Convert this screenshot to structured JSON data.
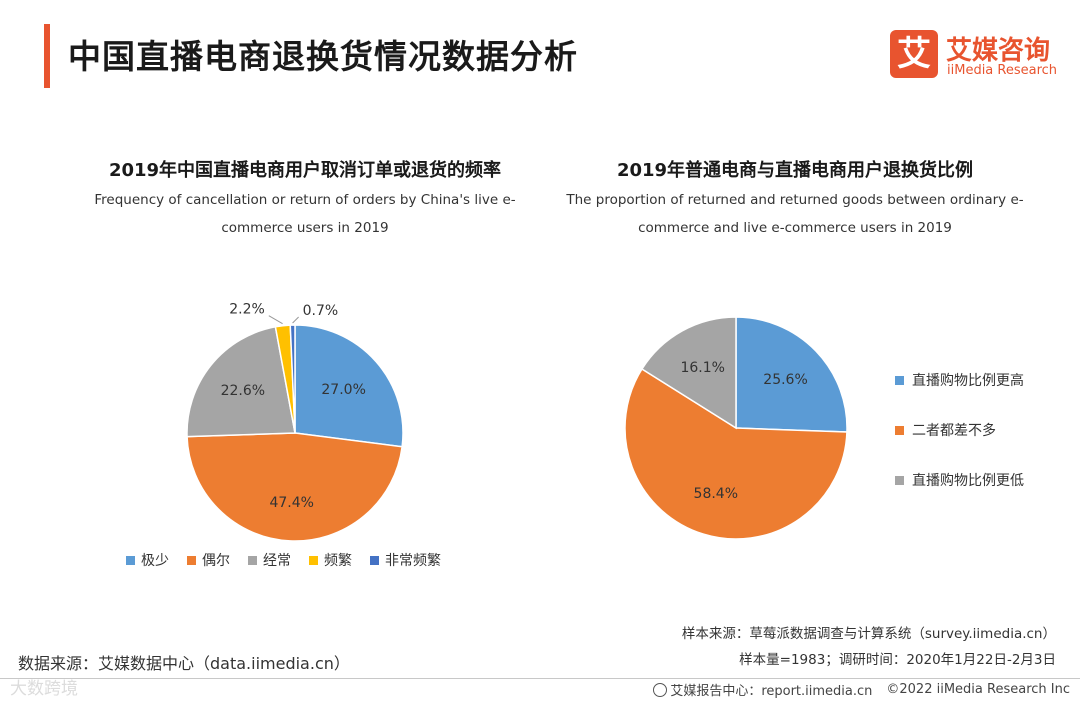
{
  "header": {
    "title": "中国直播电商退换货情况数据分析",
    "logo_mark": "艾",
    "logo_cn": "艾媒咨询",
    "logo_en": "iiMedia Research"
  },
  "chart_data": [
    {
      "type": "pie",
      "title": "2019年中国直播电商用户取消订单或退货的频率",
      "subtitle_line1": "Frequency of cancellation or return of orders by China's live e-",
      "subtitle_line2": "commerce users in 2019",
      "legend_position": "bottom",
      "slices": [
        {
          "label": "极少",
          "value": 27.0,
          "display": "27.0%",
          "color": "#5b9bd5"
        },
        {
          "label": "偶尔",
          "value": 47.4,
          "display": "47.4%",
          "color": "#ed7d31"
        },
        {
          "label": "经常",
          "value": 22.6,
          "display": "22.6%",
          "color": "#a5a5a5"
        },
        {
          "label": "频繁",
          "value": 2.2,
          "display": "2.2%",
          "color": "#ffc000"
        },
        {
          "label": "非常频繁",
          "value": 0.7,
          "display": "0.7%",
          "color": "#4472c4"
        }
      ]
    },
    {
      "type": "pie",
      "title": "2019年普通电商与直播电商用户退换货比例",
      "subtitle_line1": "The proportion of returned and returned goods between ordinary e-",
      "subtitle_line2": "commerce and live e-commerce users in 2019",
      "legend_position": "right",
      "slices": [
        {
          "label": "直播购物比例更高",
          "value": 25.6,
          "display": "25.6%",
          "color": "#5b9bd5"
        },
        {
          "label": "二者都差不多",
          "value": 58.4,
          "display": "58.4%",
          "color": "#ed7d31"
        },
        {
          "label": "直播购物比例更低",
          "value": 16.1,
          "display": "16.1%",
          "color": "#a5a5a5"
        }
      ]
    }
  ],
  "footer": {
    "sample_source": "样本来源：草莓派数据调查与计算系统（survey.iimedia.cn）",
    "sample_size": "样本量=1983；调研时间：2020年1月22日-2月3日",
    "data_source": "数据来源：艾媒数据中心（data.iimedia.cn）",
    "watermark": "大数跨境",
    "report_center": "艾媒报告中心：report.iimedia.cn",
    "copyright": "©2022  iiMedia Research  Inc"
  }
}
